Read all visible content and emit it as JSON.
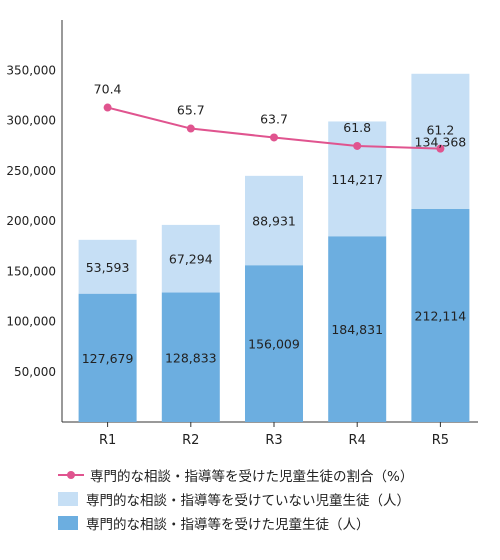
{
  "chart_data": {
    "type": "bar",
    "stacked": true,
    "categories": [
      "R1",
      "R2",
      "R3",
      "R4",
      "R5"
    ],
    "series": [
      {
        "name": "専門的な相談・指導等を受けた児童生徒（人）",
        "values": [
          127679,
          128833,
          156009,
          184831,
          212114
        ],
        "color": "#6caee0"
      },
      {
        "name": "専門的な相談・指導等を受けていない児童生徒（人）",
        "values": [
          53593,
          67294,
          88931,
          114217,
          134368
        ],
        "color": "#c6dff5"
      }
    ],
    "value_labels": {
      "bottom": [
        "127,679",
        "128,833",
        "156,009",
        "184,831",
        "212,114"
      ],
      "top": [
        "53,593",
        "67,294",
        "88,931",
        "114,217",
        "134,368"
      ]
    },
    "line_series": {
      "name": "専門的な相談・指導等を受けた児童生徒の割合（%）",
      "values": [
        70.4,
        65.7,
        63.7,
        61.8,
        61.2
      ],
      "labels": [
        "70.4",
        "65.7",
        "63.7",
        "61.8",
        "61.2"
      ],
      "color": "#e0548f",
      "secondary_axis_range": [
        0,
        90
      ]
    },
    "y_ticks": [
      "50,000",
      "100,000",
      "150,000",
      "200,000",
      "250,000",
      "300,000",
      "350,000"
    ],
    "ylim": [
      0,
      400000
    ],
    "legend_position": "bottom"
  },
  "legend": [
    {
      "label": "専門的な相談・指導等を受けた児童生徒の割合（%）",
      "kind": "line",
      "color": "#e0548f"
    },
    {
      "label": "専門的な相談・指導等を受けていない児童生徒（人）",
      "kind": "box",
      "color": "#c6dff5"
    },
    {
      "label": "専門的な相談・指導等を受けた児童生徒（人）",
      "kind": "box",
      "color": "#6caee0"
    }
  ]
}
